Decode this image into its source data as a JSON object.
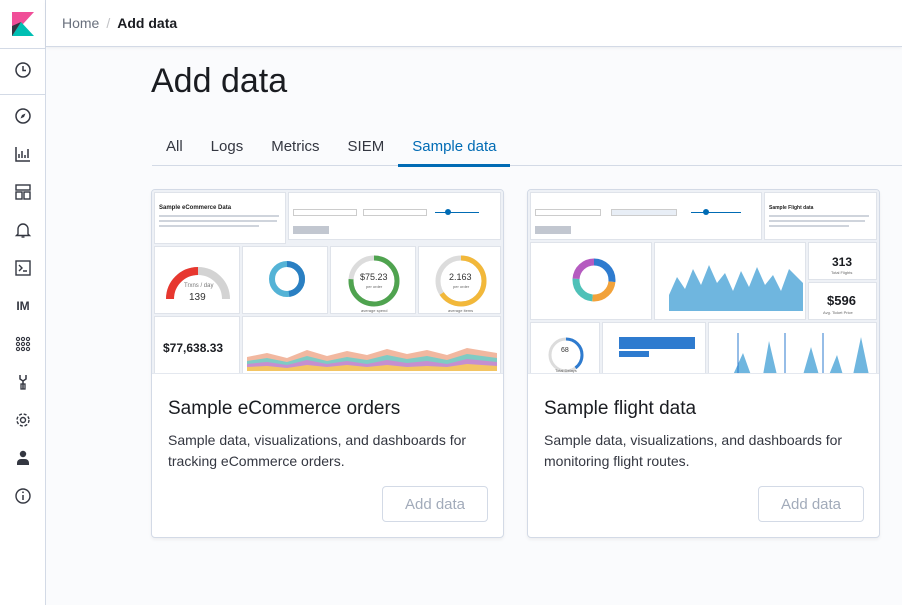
{
  "breadcrumb": {
    "home": "Home",
    "current": "Add data"
  },
  "page": {
    "title": "Add data"
  },
  "tabs": [
    {
      "label": "All",
      "active": false
    },
    {
      "label": "Logs",
      "active": false
    },
    {
      "label": "Metrics",
      "active": false
    },
    {
      "label": "SIEM",
      "active": false
    },
    {
      "label": "Sample data",
      "active": true
    }
  ],
  "nav": {
    "icons": [
      "clock-icon",
      "compass-icon",
      "visualize-icon",
      "dashboard-icon",
      "alert-bell-icon",
      "console-icon",
      "infra-monitoring-icon",
      "apps-grid-icon",
      "dev-tools-wrench-icon",
      "settings-gear-icon",
      "user-icon",
      "info-icon"
    ],
    "im_label": "IM"
  },
  "colors": {
    "accent": "#006bb4",
    "logo_pink": "#f04e98",
    "logo_teal": "#00bfb3"
  },
  "cards": {
    "ecommerce": {
      "title": "Sample eCommerce orders",
      "description": "Sample data, visualizations, and dashboards for tracking eCommerce orders.",
      "button": "Add data",
      "preview": {
        "markdown_title": "Sample eCommerce Data",
        "revenue": "$77,638.33",
        "trxns_label": "Trxns / day",
        "trxns_value": "139",
        "avg_spend": "$75.23",
        "avg_spend_sub": "per order",
        "avg_spend_label": "average spend",
        "avg_items": "2.163",
        "avg_items_sub": "per order",
        "avg_items_label": "average items"
      }
    },
    "flight": {
      "title": "Sample flight data",
      "description": "Sample data, visualizations, and dashboards for monitoring flight routes.",
      "button": "Add data",
      "preview": {
        "markdown_title": "Sample Flight data",
        "total_flights": "313",
        "total_flights_label": "Total Flights",
        "avg_price": "$596",
        "avg_price_label": "Avg. Ticket Price",
        "total_delays": "68",
        "total_delays_label": "Total Delays"
      }
    }
  }
}
